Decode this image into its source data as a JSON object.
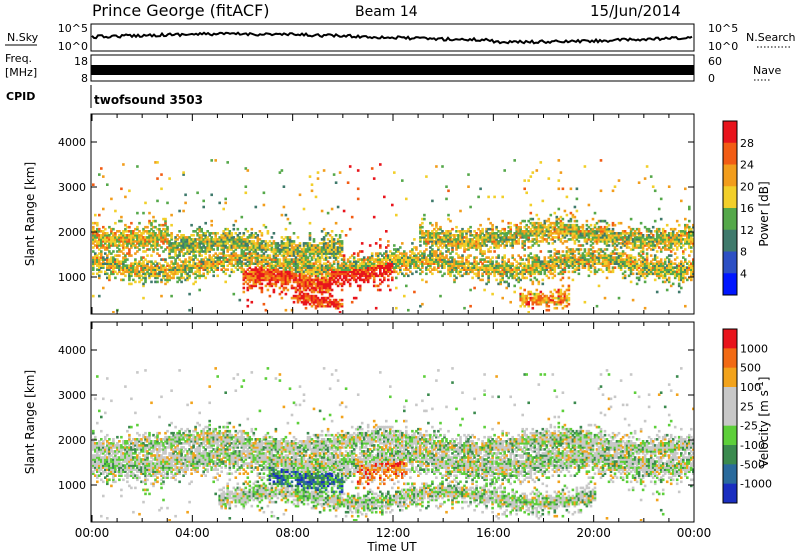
{
  "header": {
    "title": "Prince George (fitACF)",
    "beam": "Beam 14",
    "date": "15/Jun/2014"
  },
  "top_panels": {
    "nsky_label": "N.Sky",
    "nsky_ticks": [
      "10^5",
      "10^0"
    ],
    "nsearch_label": "N.Search",
    "nsearch_ticks": [
      "10^5",
      "10^0"
    ],
    "freq_label": "Freq.",
    "freq_unit": "[MHz]",
    "freq_ticks": [
      "18",
      "8"
    ],
    "nave_label": "Nave",
    "nave_ticks": [
      "60",
      "0"
    ],
    "cpid_label": "CPID",
    "cpid_value": "twofsound 3503"
  },
  "chart_data": [
    {
      "type": "heatmap",
      "name": "power",
      "ylabel": "Slant Range [km]",
      "y_ticks": [
        "1000",
        "2000",
        "3000",
        "4000"
      ],
      "ylim": [
        200,
        4600
      ],
      "colorbar_label": "Power [dB]",
      "colorbar_ticks": [
        "4",
        "8",
        "12",
        "16",
        "20",
        "24",
        "28"
      ],
      "colorbar_range": [
        0,
        32
      ],
      "colors": [
        "#0016ff",
        "#2c4fc4",
        "#3f7a6c",
        "#55a84a",
        "#f2cf2a",
        "#f29d1c",
        "#f25c14",
        "#e8141c"
      ],
      "bands": [
        {
          "t0": 0.0,
          "t1": 24.0,
          "center": 1250,
          "width": 220,
          "level": 0.55
        },
        {
          "t0": 0.0,
          "t1": 3.0,
          "center": 1900,
          "width": 260,
          "level": 0.6
        },
        {
          "t0": 3.0,
          "t1": 10.0,
          "center": 1650,
          "width": 240,
          "level": 0.5
        },
        {
          "t0": 6.0,
          "t1": 9.5,
          "center": 900,
          "width": 250,
          "level": 0.85
        },
        {
          "t0": 9.5,
          "t1": 12.0,
          "center": 1200,
          "width": 260,
          "level": 0.95
        },
        {
          "t0": 8.0,
          "t1": 10.0,
          "center": 400,
          "width": 120,
          "level": 0.9
        },
        {
          "t0": 13.0,
          "t1": 24.0,
          "center": 1900,
          "width": 220,
          "level": 0.55
        },
        {
          "t0": 17.0,
          "t1": 19.0,
          "center": 600,
          "width": 150,
          "level": 0.7
        }
      ]
    },
    {
      "type": "heatmap",
      "name": "velocity",
      "ylabel": "Slant Range [km]",
      "y_ticks": [
        "1000",
        "2000",
        "3000",
        "4000"
      ],
      "ylim": [
        200,
        4600
      ],
      "colorbar_label": "Velocity [m s^-1]",
      "colorbar_ticks": [
        "1000",
        "500",
        "100",
        "25",
        "-25",
        "-100",
        "-500",
        "-1000"
      ],
      "colors": [
        "#1a2ec0",
        "#2a6a9c",
        "#3b8a4e",
        "#5dcf3a",
        "#c8c8c8",
        "#c8c8c8",
        "#f2a31c",
        "#f26a14",
        "#e8141c"
      ],
      "bands": [
        {
          "t0": 0.0,
          "t1": 24.0,
          "center": 1500,
          "width": 300,
          "level": 0.5
        },
        {
          "t0": 0.0,
          "t1": 24.0,
          "center": 1900,
          "width": 220,
          "level": 0.5
        },
        {
          "t0": 7.0,
          "t1": 10.0,
          "center": 1200,
          "width": 300,
          "level": 0.25
        },
        {
          "t0": 10.5,
          "t1": 12.5,
          "center": 1350,
          "width": 300,
          "level": 0.75
        },
        {
          "t0": 5.0,
          "t1": 20.0,
          "center": 700,
          "width": 200,
          "level": 0.5
        }
      ]
    }
  ],
  "x_axis": {
    "label": "Time UT",
    "ticks": [
      "00:00",
      "04:00",
      "08:00",
      "12:00",
      "16:00",
      "20:00",
      "00:00"
    ],
    "xlim": [
      0,
      24
    ]
  }
}
